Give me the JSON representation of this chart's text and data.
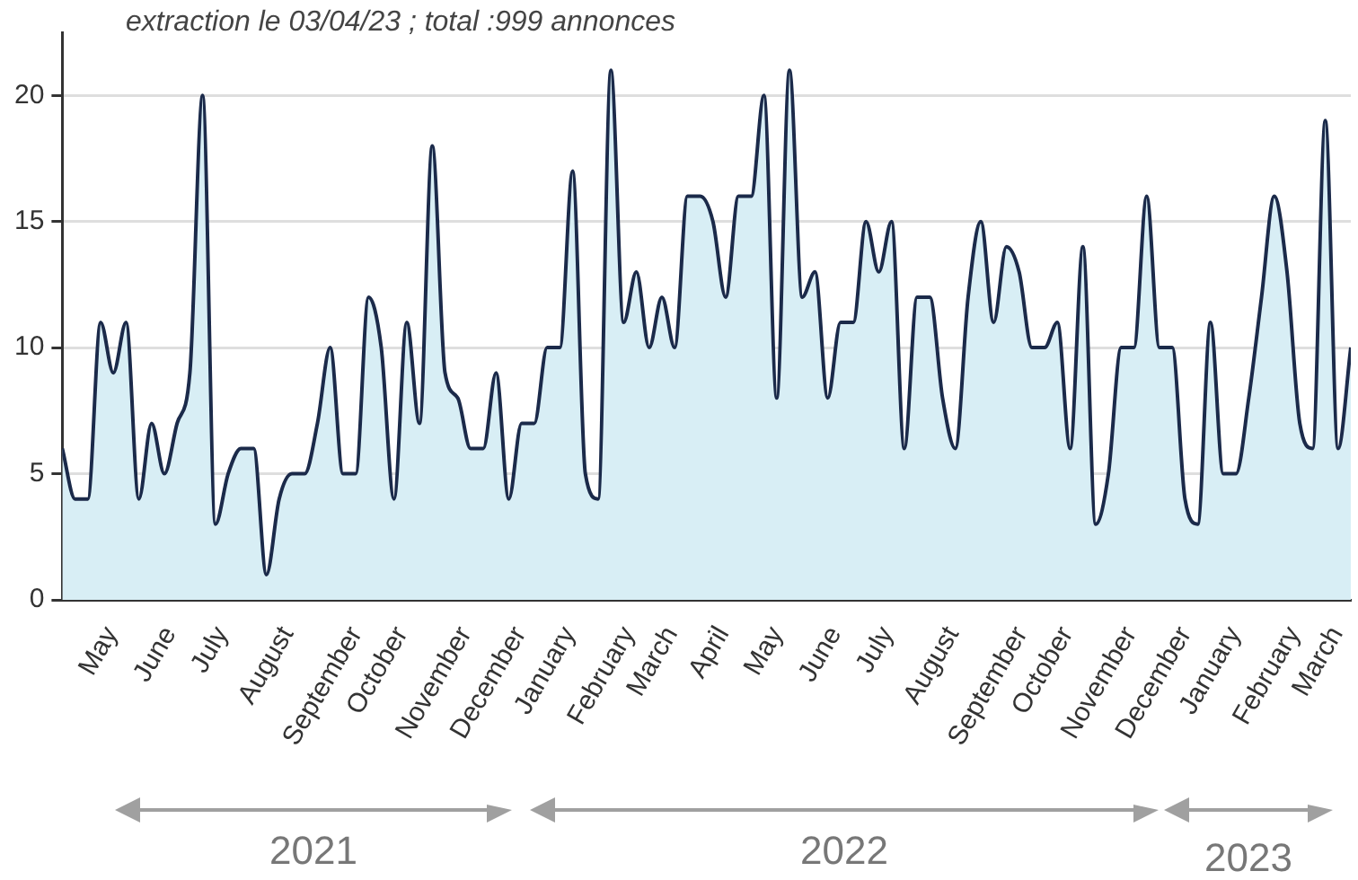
{
  "chart_data": {
    "type": "area",
    "annotations": [
      "extraction le 03/04/23 ; total :999 annonces",
      "2021",
      "2022",
      "2023"
    ],
    "x": [
      "2021-04-12",
      "2021-04-19",
      "2021-04-26",
      "2021-05-03",
      "2021-05-10",
      "2021-05-17",
      "2021-05-24",
      "2021-05-31",
      "2021-06-07",
      "2021-06-14",
      "2021-06-21",
      "2021-06-28",
      "2021-07-05",
      "2021-07-12",
      "2021-07-19",
      "2021-07-26",
      "2021-08-02",
      "2021-08-09",
      "2021-08-16",
      "2021-08-23",
      "2021-08-30",
      "2021-09-06",
      "2021-09-13",
      "2021-09-20",
      "2021-09-27",
      "2021-10-04",
      "2021-10-11",
      "2021-10-18",
      "2021-10-25",
      "2021-11-01",
      "2021-11-08",
      "2021-11-15",
      "2021-11-22",
      "2021-11-29",
      "2021-12-06",
      "2021-12-13",
      "2021-12-20",
      "2021-12-27",
      "2022-01-03",
      "2022-01-10",
      "2022-01-17",
      "2022-01-24",
      "2022-01-31",
      "2022-02-07",
      "2022-02-14",
      "2022-02-21",
      "2022-02-28",
      "2022-03-07",
      "2022-03-14",
      "2022-03-21",
      "2022-03-28",
      "2022-04-04",
      "2022-04-11",
      "2022-04-18",
      "2022-04-25",
      "2022-05-02",
      "2022-05-09",
      "2022-05-16",
      "2022-05-23",
      "2022-05-30",
      "2022-06-06",
      "2022-06-13",
      "2022-06-20",
      "2022-06-27",
      "2022-07-04",
      "2022-07-11",
      "2022-07-18",
      "2022-07-25",
      "2022-08-01",
      "2022-08-08",
      "2022-08-15",
      "2022-08-22",
      "2022-08-29",
      "2022-09-05",
      "2022-09-12",
      "2022-09-19",
      "2022-09-26",
      "2022-10-03",
      "2022-10-10",
      "2022-10-17",
      "2022-10-24",
      "2022-10-31",
      "2022-11-07",
      "2022-11-14",
      "2022-11-21",
      "2022-11-28",
      "2022-12-05",
      "2022-12-12",
      "2022-12-19",
      "2022-12-26",
      "2023-01-02",
      "2023-01-09",
      "2023-01-16",
      "2023-01-23",
      "2023-01-30",
      "2023-02-06",
      "2023-02-13",
      "2023-02-20",
      "2023-02-27",
      "2023-03-06",
      "2023-03-13",
      "2023-03-20"
    ],
    "series": [
      {
        "color": "#1b2a4a",
        "values": [
          6,
          4,
          4,
          11,
          9,
          11,
          4,
          7,
          5,
          7,
          9,
          20,
          3,
          5,
          6,
          6,
          1,
          4,
          5,
          5,
          7,
          10,
          5,
          5,
          12,
          10,
          4,
          11,
          7,
          18,
          9,
          8,
          6,
          6,
          9,
          4,
          7,
          7,
          10,
          10,
          17,
          5,
          4,
          21,
          11,
          13,
          10,
          12,
          10,
          16,
          16,
          15,
          12,
          16,
          16,
          20,
          8,
          21,
          12,
          13,
          8,
          11,
          11,
          15,
          13,
          15,
          6,
          12,
          12,
          8,
          6,
          12,
          15,
          11,
          14,
          13,
          10,
          10,
          11,
          6,
          14,
          3,
          5,
          10,
          10,
          16,
          10,
          10,
          4,
          3,
          11,
          5,
          5,
          8,
          12,
          16,
          13,
          7,
          6,
          19,
          6,
          10
        ]
      }
    ],
    "xlim": [
      "2021-04-12",
      "2023-03-20"
    ],
    "xticks": [
      {
        "value": "2021-05-01",
        "label": "May"
      },
      {
        "value": "2021-06-01",
        "label": "June"
      },
      {
        "value": "2021-07-01",
        "label": "July"
      },
      {
        "value": "2021-08-01",
        "label": "August"
      },
      {
        "value": "2021-09-01",
        "label": "September"
      },
      {
        "value": "2021-10-01",
        "label": "October"
      },
      {
        "value": "2021-11-01",
        "label": "November"
      },
      {
        "value": "2021-12-01",
        "label": "December"
      },
      {
        "value": "2022-01-01",
        "label": "January"
      },
      {
        "value": "2022-02-01",
        "label": "February"
      },
      {
        "value": "2022-03-01",
        "label": "March"
      },
      {
        "value": "2022-04-01",
        "label": "April"
      },
      {
        "value": "2022-05-01",
        "label": "May"
      },
      {
        "value": "2022-06-01",
        "label": "June"
      },
      {
        "value": "2022-07-01",
        "label": "July"
      },
      {
        "value": "2022-08-01",
        "label": "August"
      },
      {
        "value": "2022-09-01",
        "label": "September"
      },
      {
        "value": "2022-10-01",
        "label": "October"
      },
      {
        "value": "2022-11-01",
        "label": "November"
      },
      {
        "value": "2022-12-01",
        "label": "December"
      },
      {
        "value": "2023-01-01",
        "label": "January"
      },
      {
        "value": "2023-02-01",
        "label": "February"
      },
      {
        "value": "2023-03-01",
        "label": "March"
      }
    ],
    "ylim": [
      0,
      22.5
    ],
    "yticks": [
      0,
      5,
      10,
      15,
      20
    ],
    "grid": "y",
    "legend": false,
    "marker": "none",
    "line_style": "solid"
  }
}
